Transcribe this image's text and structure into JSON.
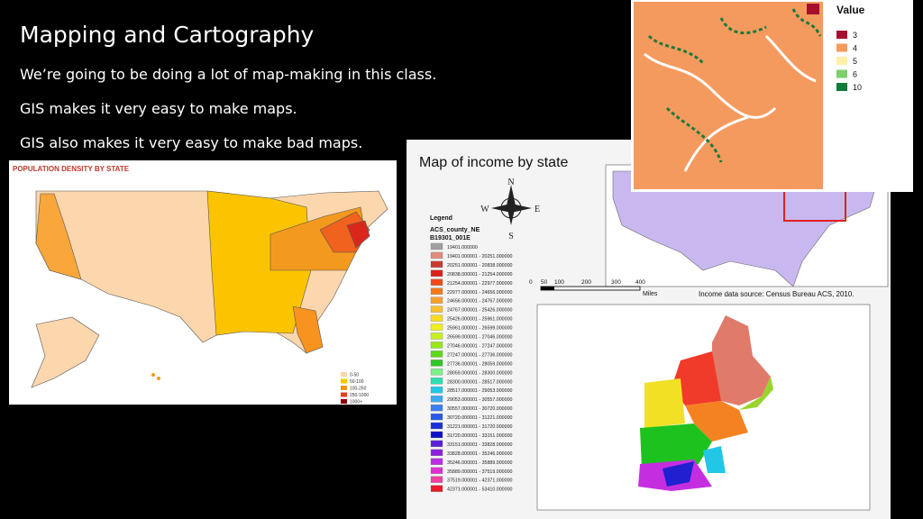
{
  "slide": {
    "title": "Mapping and Cartography",
    "bullets": [
      "We’re going to be doing a lot of map-making in this class.",
      "GIS makes it very easy to make maps.",
      "GIS also makes it very easy to make bad maps."
    ]
  },
  "population_map": {
    "title": "POPULATION DENSITY BY STATE",
    "legend": [
      "0-50",
      "50-100",
      "100-250",
      "250-1000",
      "1000+"
    ]
  },
  "income_map": {
    "title": "Map of income by state",
    "compass": [
      "N",
      "S",
      "E",
      "W"
    ],
    "legend_title": "Legend",
    "layer": "ACS_county_NE",
    "field": "B19301_001E",
    "legend": [
      "19401.000000",
      "19401.000001 - 20251.000000",
      "20251.000001 - 20838.000000",
      "20838.000001 - 21254.000000",
      "21254.000001 - 22977.000000",
      "22977.000001 - 24656.000000",
      "24656.000001 - 24767.000000",
      "24767.000001 - 25426.000000",
      "25426.000001 - 25961.000000",
      "25961.000001 - 26599.000000",
      "26599.000001 - 27046.000000",
      "27046.000001 - 27247.000000",
      "27247.000001 - 27736.000000",
      "27736.000001 - 28059.000000",
      "28059.000001 - 28300.000000",
      "28300.000001 - 28517.000000",
      "28517.000001 - 29053.000000",
      "29053.000001 - 30557.000000",
      "30557.000001 - 30720.000000",
      "30720.000001 - 31221.000000",
      "31221.000001 - 31720.000000",
      "31720.000001 - 33151.000000",
      "33151.000001 - 33828.000000",
      "33828.000001 - 35246.000000",
      "35246.000001 - 35889.000000",
      "35889.000001 - 37519.000000",
      "37519.000001 - 42371.000000",
      "42371.000001 - 53410.000000"
    ],
    "scale": [
      "0",
      "50",
      "100",
      "200",
      "300",
      "400"
    ],
    "scale_unit": "Miles",
    "source": "Income data source: Census Bureau ACS, 2010."
  },
  "value_map": {
    "title": "Value",
    "legend": [
      "3",
      "4",
      "5",
      "6",
      "10"
    ]
  }
}
